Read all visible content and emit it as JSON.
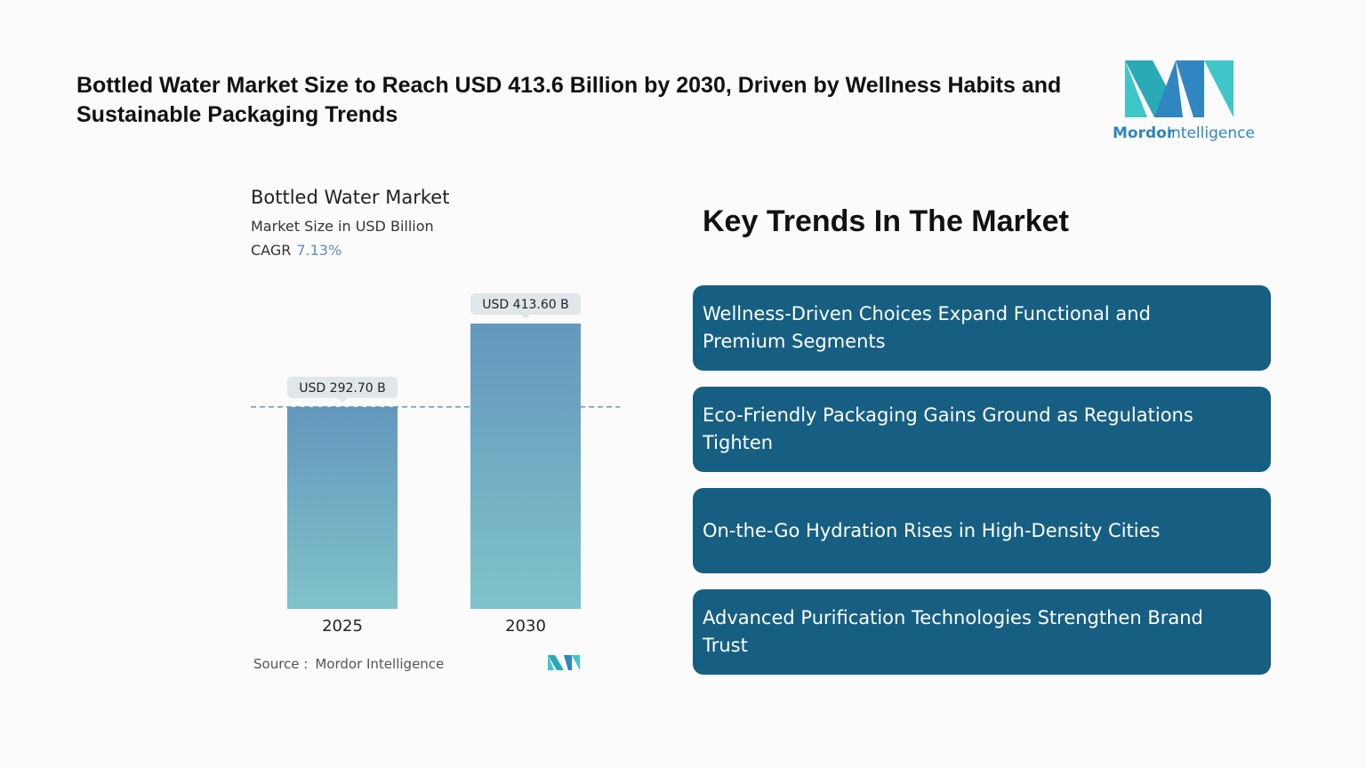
{
  "header": {
    "title": "Bottled Water Market Size to Reach USD 413.6 Billion by 2030, Driven by Wellness Habits and Sustainable Packaging Trends",
    "logo": {
      "word1": "Mordor",
      "word2": "Intelligence"
    }
  },
  "chart_data": {
    "type": "bar",
    "title": "Bottled Water Market",
    "subtitle": "Market Size in USD Billion",
    "cagr_label": "CAGR",
    "cagr_value": "7.13%",
    "categories": [
      "2025",
      "2030"
    ],
    "values": [
      292.7,
      413.6
    ],
    "value_labels": [
      "USD 292.70 B",
      "USD 413.60 B"
    ],
    "color_top": "#6497bd",
    "color_bottom": "#80c3c9",
    "source_label": "Source :",
    "source": "Mordor Intelligence"
  },
  "trends": {
    "heading": "Key Trends In The Market",
    "items": [
      "Wellness-Driven Choices Expand Functional and Premium Segments",
      "Eco-Friendly Packaging Gains Ground as Regulations Tighten",
      "On-the-Go Hydration Rises in High-Density Cities",
      "Advanced Purification Technologies Strengthen Brand Trust"
    ]
  }
}
